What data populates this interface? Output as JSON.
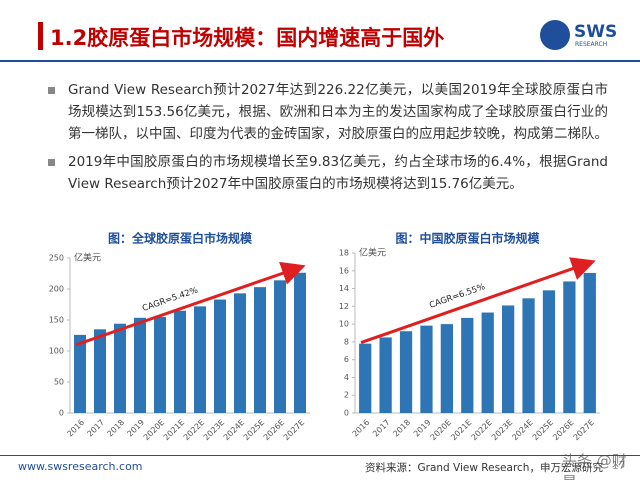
{
  "header": {
    "title": "1.2胶原蛋白市场规模：国内增速高于国外",
    "logo": "SWS",
    "logo_sub": "RESEARCH"
  },
  "bullets": [
    "Grand View Research预计2027年达到226.22亿美元，以美国2019年全球胶原蛋白市场规模达到153.56亿美元，根据、欧洲和日本为主的发达国家构成了全球胶原蛋白行业的第一梯队，以中国、印度为代表的金砖国家，对胶原蛋白的应用起步较晚，构成第二梯队。",
    "2019年中国胶原蛋白的市场规模增长至9.83亿美元，约占全球市场的6.4%，根据Grand View Research预计2027年中国胶原蛋白的市场规模将达到15.76亿美元。"
  ],
  "chart_data": [
    {
      "type": "bar",
      "title": "图：全球胶原蛋白市场规模",
      "unit": "亿美元",
      "annotation": "CAGR=5.42%",
      "categories": [
        "2016",
        "2017",
        "2018",
        "2019",
        "2020E",
        "2021E",
        "2022E",
        "2023E",
        "2024E",
        "2025E",
        "2026E",
        "2027E"
      ],
      "values": [
        126,
        135,
        144,
        153.56,
        155,
        165,
        172,
        183,
        193,
        203,
        214,
        226.22
      ],
      "color": "#2e75b6",
      "ylim": [
        0,
        250
      ],
      "yticks": [
        0,
        50,
        100,
        150,
        200,
        250
      ]
    },
    {
      "type": "bar",
      "title": "图：中国胶原蛋白市场规模",
      "unit": "亿美元",
      "annotation": "CAGR=6.55%",
      "categories": [
        "2016",
        "2017",
        "2018",
        "2019",
        "2020E",
        "2021E",
        "2022E",
        "2023E",
        "2024E",
        "2025E",
        "2026E",
        "2027E"
      ],
      "values": [
        7.8,
        8.5,
        9.2,
        9.83,
        10.0,
        10.7,
        11.3,
        12.1,
        12.9,
        13.8,
        14.8,
        15.76
      ],
      "color": "#2e75b6",
      "ylim": [
        0,
        18
      ],
      "yticks": [
        0,
        2,
        4,
        6,
        8,
        10,
        12,
        14,
        16,
        18
      ]
    }
  ],
  "footer": {
    "url": "www.swsresearch.com",
    "source": "资料来源：Grand View Research，申万宏源研究",
    "page": "17",
    "watermark": "头条 @财是"
  }
}
